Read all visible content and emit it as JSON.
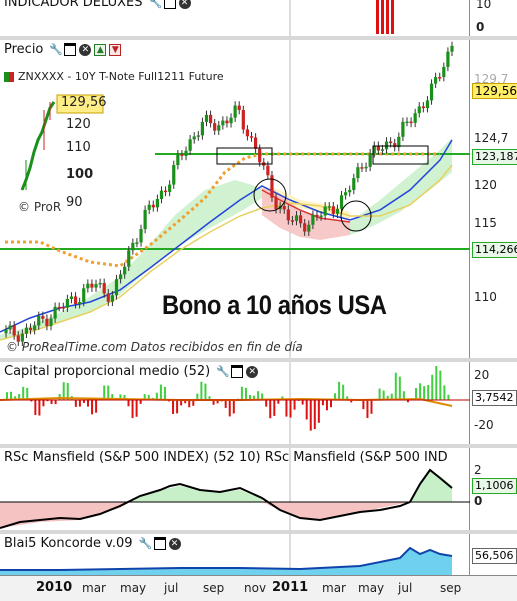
{
  "top_panel": {
    "title": "INDICADOR DELUXES",
    "axis": [
      "10",
      "0"
    ]
  },
  "price_panel": {
    "title": "Precio",
    "instrument": "ZNXXXX - 10Y T-Note Full1211 Future",
    "axis": [
      "129,7",
      "124,7",
      "120",
      "115",
      "110"
    ],
    "current_price": "129,56",
    "level_green": "123,187",
    "level_low": "114,266",
    "watermark": "© ProRealTime.com Datos recibidos en fin de día",
    "headline": "Bono a 10 años USA",
    "inset": {
      "price": "129,56",
      "ticks": [
        "120",
        "110",
        "100",
        "90"
      ],
      "mark": "© ProR"
    }
  },
  "capital_panel": {
    "title": "Capital proporcional medio (52)",
    "axis": [
      "20",
      "-20"
    ],
    "value": "3,7542"
  },
  "rsc_panel": {
    "title": "RSc Mansfield (S&P 500 INDEX) (52 10) RSc Mansfield (S&P 500 IND",
    "axis": [
      "2",
      "0"
    ],
    "value": "1,1006"
  },
  "koncorde_panel": {
    "title": "Blai5 Koncorde v.09",
    "value": "56,506"
  },
  "x_axis": {
    "labels": [
      "2010",
      "mar",
      "may",
      "jul",
      "sep",
      "nov",
      "2011",
      "mar",
      "may",
      "jul",
      "sep"
    ]
  },
  "colors": {
    "up_candle": "#1a8f1a",
    "down_candle": "#cc2222",
    "green_line": "#22aa22",
    "red_bars": "#dd1111",
    "cloud_green": "#c8f0c8",
    "cloud_red": "#f6c3c3"
  },
  "chart_data": {
    "type": "candlestick",
    "title": "ZNXXXX - 10Y T-Note Full1211 Future",
    "x": [
      "2010",
      "mar",
      "may",
      "jul",
      "sep",
      "nov",
      "2011",
      "mar",
      "may",
      "jul",
      "sep"
    ],
    "close_approx": [
      106,
      106,
      107,
      108,
      109,
      110,
      109,
      113,
      116,
      118,
      121,
      123,
      123,
      124,
      121,
      117,
      115,
      115,
      116,
      117,
      120,
      121,
      122,
      124,
      126,
      129.56
    ],
    "levels": [
      123.187,
      114.266
    ]
  }
}
